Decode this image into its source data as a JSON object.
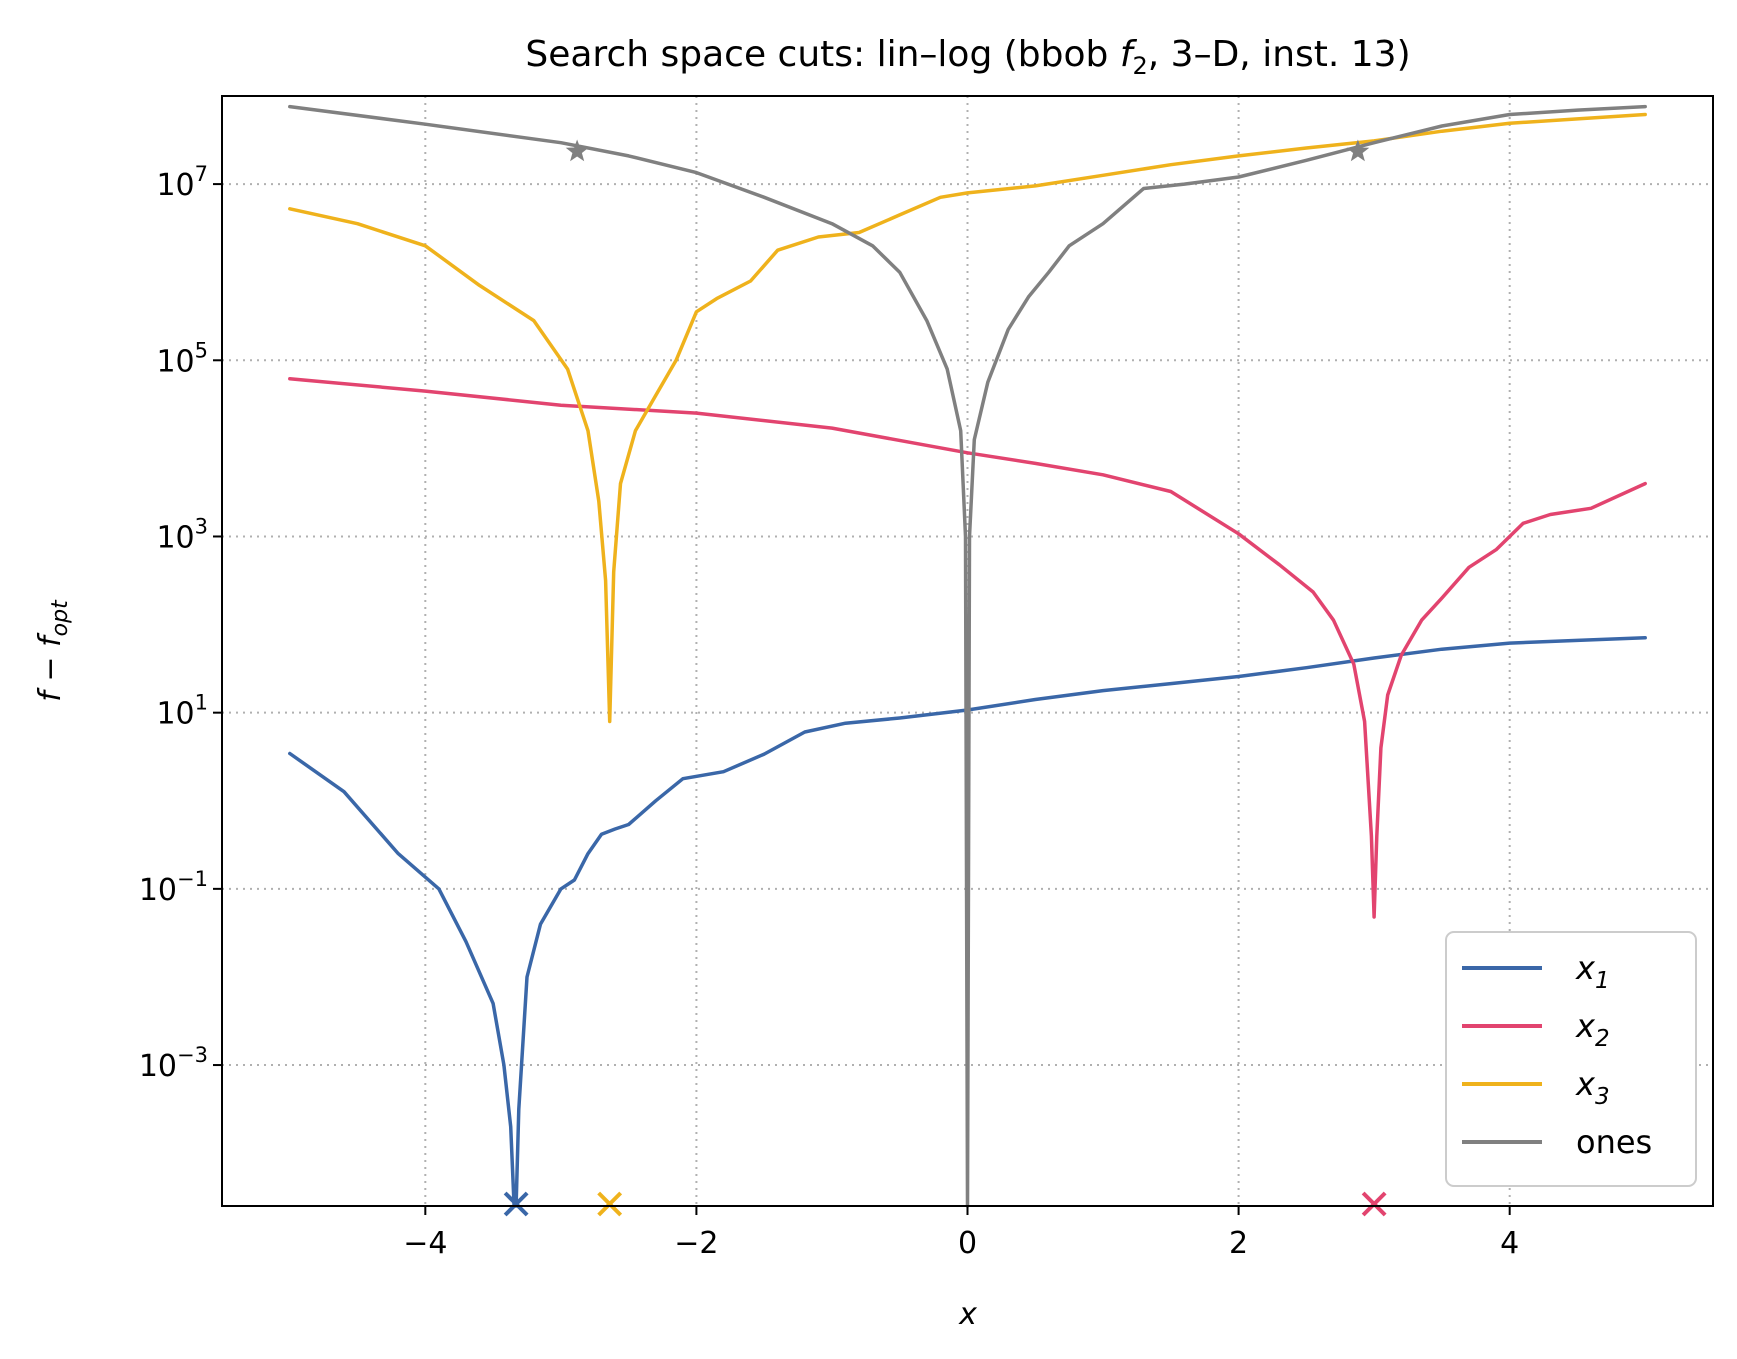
{
  "chart_data": {
    "type": "line",
    "title": "Search space cuts: lin–log (bbob f2, 3–D, inst. 13)",
    "title_parts": {
      "prefix": "Search space cuts: lin–log (bbob ",
      "func": "f",
      "func_sub": "2",
      "suffix": ", 3–D, inst. 13)"
    },
    "xlabel": "x",
    "ylabel": {
      "a": "f",
      "minus": " − ",
      "b": "f",
      "sub": "opt"
    },
    "yscale": "log",
    "xlim": [
      -5.5,
      5.5
    ],
    "ylim_log10": [
      -4.6,
      8.0
    ],
    "grid": true,
    "legend_position": "lower right",
    "x_ticks": [
      {
        "value": -4,
        "label": "−4"
      },
      {
        "value": -2,
        "label": "−2"
      },
      {
        "value": 0,
        "label": "0"
      },
      {
        "value": 2,
        "label": "2"
      },
      {
        "value": 4,
        "label": "4"
      }
    ],
    "y_ticks": [
      {
        "exp": 7,
        "base": "10",
        "sup": "7"
      },
      {
        "exp": 5,
        "base": "10",
        "sup": "5"
      },
      {
        "exp": 3,
        "base": "10",
        "sup": "3"
      },
      {
        "exp": 1,
        "base": "10",
        "sup": "1"
      },
      {
        "exp": -1,
        "base": "10",
        "sup": "−1"
      },
      {
        "exp": -3,
        "base": "10",
        "sup": "−3"
      }
    ],
    "series": [
      {
        "name": "x1",
        "label_base": "x",
        "label_sub": "1",
        "color": "#3a67a8",
        "points": [
          [
            -5.0,
            0.537
          ],
          [
            -4.6,
            0.103
          ],
          [
            -4.2,
            -0.6
          ],
          [
            -3.9,
            -1.0
          ],
          [
            -3.7,
            -1.6
          ],
          [
            -3.5,
            -2.3
          ],
          [
            -3.42,
            -3.0
          ],
          [
            -3.37,
            -3.7
          ],
          [
            -3.345,
            -4.6
          ],
          [
            -3.33,
            -4.6
          ],
          [
            -3.31,
            -3.5
          ],
          [
            -3.25,
            -2.0
          ],
          [
            -3.15,
            -1.4
          ],
          [
            -3.0,
            -1.0
          ],
          [
            -2.9,
            -0.9
          ],
          [
            -2.8,
            -0.6
          ],
          [
            -2.7,
            -0.38
          ],
          [
            -2.6,
            -0.32
          ],
          [
            -2.5,
            -0.27
          ],
          [
            -2.3,
            0.0
          ],
          [
            -2.1,
            0.25
          ],
          [
            -1.8,
            0.33
          ],
          [
            -1.5,
            0.53
          ],
          [
            -1.2,
            0.78
          ],
          [
            -0.9,
            0.88
          ],
          [
            -0.5,
            0.94
          ],
          [
            0.0,
            1.03
          ],
          [
            0.5,
            1.15
          ],
          [
            1.0,
            1.25
          ],
          [
            1.5,
            1.33
          ],
          [
            2.0,
            1.41
          ],
          [
            2.5,
            1.51
          ],
          [
            3.0,
            1.62
          ],
          [
            3.5,
            1.72
          ],
          [
            4.0,
            1.79
          ],
          [
            4.5,
            1.82
          ],
          [
            5.0,
            1.85
          ]
        ]
      },
      {
        "name": "x2",
        "label_base": "x",
        "label_sub": "2",
        "color": "#e2446f",
        "points": [
          [
            -5.0,
            4.79
          ],
          [
            -4.0,
            4.65
          ],
          [
            -3.0,
            4.49
          ],
          [
            -2.0,
            4.4
          ],
          [
            -1.0,
            4.23
          ],
          [
            0.0,
            3.95
          ],
          [
            0.5,
            3.83
          ],
          [
            1.0,
            3.7
          ],
          [
            1.5,
            3.51
          ],
          [
            2.0,
            3.03
          ],
          [
            2.3,
            2.68
          ],
          [
            2.55,
            2.37
          ],
          [
            2.7,
            2.05
          ],
          [
            2.85,
            1.55
          ],
          [
            2.93,
            0.9
          ],
          [
            2.98,
            -0.4
          ],
          [
            3.0,
            -1.32
          ],
          [
            3.02,
            -0.4
          ],
          [
            3.05,
            0.6
          ],
          [
            3.1,
            1.2
          ],
          [
            3.2,
            1.65
          ],
          [
            3.35,
            2.05
          ],
          [
            3.5,
            2.3
          ],
          [
            3.7,
            2.65
          ],
          [
            3.9,
            2.85
          ],
          [
            4.1,
            3.15
          ],
          [
            4.3,
            3.25
          ],
          [
            4.6,
            3.32
          ],
          [
            5.0,
            3.6
          ]
        ]
      },
      {
        "name": "x3",
        "label_base": "x",
        "label_sub": "3",
        "color": "#efb21c",
        "points": [
          [
            -5.0,
            6.72
          ],
          [
            -4.5,
            6.55
          ],
          [
            -4.0,
            6.3
          ],
          [
            -3.6,
            5.85
          ],
          [
            -3.2,
            5.45
          ],
          [
            -2.95,
            4.9
          ],
          [
            -2.8,
            4.2
          ],
          [
            -2.72,
            3.4
          ],
          [
            -2.67,
            2.5
          ],
          [
            -2.64,
            0.9
          ],
          [
            -2.61,
            2.6
          ],
          [
            -2.56,
            3.6
          ],
          [
            -2.45,
            4.2
          ],
          [
            -2.3,
            4.6
          ],
          [
            -2.15,
            5.0
          ],
          [
            -2.0,
            5.55
          ],
          [
            -1.85,
            5.7
          ],
          [
            -1.6,
            5.9
          ],
          [
            -1.4,
            6.25
          ],
          [
            -1.1,
            6.4
          ],
          [
            -0.8,
            6.45
          ],
          [
            -0.5,
            6.65
          ],
          [
            -0.2,
            6.85
          ],
          [
            0.0,
            6.9
          ],
          [
            0.5,
            6.98
          ],
          [
            1.0,
            7.1
          ],
          [
            1.5,
            7.22
          ],
          [
            2.0,
            7.32
          ],
          [
            2.5,
            7.41
          ],
          [
            3.0,
            7.49
          ],
          [
            3.5,
            7.6
          ],
          [
            4.0,
            7.69
          ],
          [
            4.5,
            7.74
          ],
          [
            5.0,
            7.79
          ]
        ]
      },
      {
        "name": "ones",
        "label_base": "ones",
        "label_sub": "",
        "color": "#808080",
        "points": [
          [
            -5.0,
            7.88
          ],
          [
            -4.0,
            7.68
          ],
          [
            -3.0,
            7.47
          ],
          [
            -2.5,
            7.32
          ],
          [
            -2.0,
            7.13
          ],
          [
            -1.5,
            6.85
          ],
          [
            -1.0,
            6.55
          ],
          [
            -0.7,
            6.3
          ],
          [
            -0.5,
            6.0
          ],
          [
            -0.3,
            5.45
          ],
          [
            -0.15,
            4.9
          ],
          [
            -0.05,
            4.2
          ],
          [
            -0.015,
            3.0
          ],
          [
            0.0,
            -4.6
          ],
          [
            0.015,
            3.0
          ],
          [
            0.05,
            4.1
          ],
          [
            0.15,
            4.75
          ],
          [
            0.3,
            5.35
          ],
          [
            0.45,
            5.72
          ],
          [
            0.6,
            6.0
          ],
          [
            0.75,
            6.3
          ],
          [
            1.0,
            6.55
          ],
          [
            1.3,
            6.95
          ],
          [
            1.6,
            7.0
          ],
          [
            2.0,
            7.08
          ],
          [
            2.5,
            7.27
          ],
          [
            3.0,
            7.47
          ],
          [
            3.5,
            7.66
          ],
          [
            4.0,
            7.79
          ],
          [
            4.5,
            7.84
          ],
          [
            5.0,
            7.88
          ]
        ]
      }
    ],
    "minima_markers": [
      {
        "series": "x1",
        "x": -3.33,
        "marker": "x"
      },
      {
        "series": "x3",
        "x": -2.64,
        "marker": "x"
      },
      {
        "series": "x2",
        "x": 3.0,
        "marker": "x"
      }
    ],
    "star_markers": [
      {
        "series": "ones",
        "x": -2.88,
        "log10_y": 7.37
      },
      {
        "series": "ones",
        "x": 2.88,
        "log10_y": 7.37
      }
    ]
  }
}
